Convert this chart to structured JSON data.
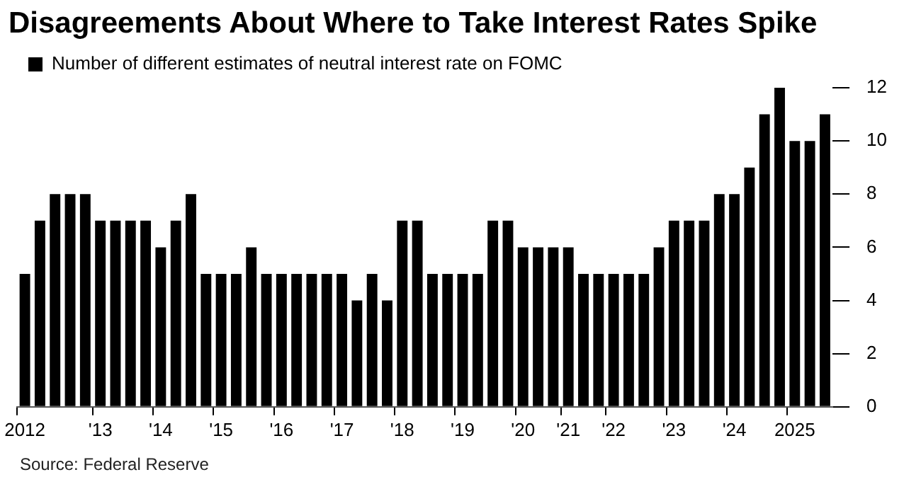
{
  "chart_data": {
    "type": "bar",
    "title": "Disagreements About Where to Take Interest Rates Spike",
    "categories": [
      "2012",
      null,
      null,
      null,
      null,
      "'13",
      null,
      null,
      null,
      "'14",
      null,
      null,
      null,
      "'15",
      null,
      null,
      null,
      "'16",
      null,
      null,
      null,
      "'17",
      null,
      null,
      null,
      "'18",
      null,
      null,
      null,
      "'19",
      null,
      null,
      null,
      "'20",
      null,
      null,
      "'21",
      null,
      null,
      "'22",
      null,
      null,
      null,
      "'23",
      null,
      null,
      null,
      "'24",
      null,
      null,
      null,
      "2025",
      null,
      null
    ],
    "series": [
      {
        "name": "Number of different estimates of neutral interest rate on FOMC",
        "color": "#000000",
        "values": [
          5,
          7,
          8,
          8,
          8,
          7,
          7,
          7,
          7,
          6,
          7,
          8,
          5,
          5,
          5,
          6,
          5,
          5,
          5,
          5,
          5,
          5,
          4,
          5,
          4,
          7,
          7,
          5,
          5,
          5,
          5,
          7,
          7,
          6,
          6,
          6,
          6,
          5,
          5,
          5,
          5,
          5,
          6,
          7,
          7,
          7,
          8,
          8,
          9,
          11,
          12,
          10,
          10,
          11
        ]
      }
    ],
    "ylim": [
      0,
      12
    ],
    "yticks": [
      0,
      2,
      4,
      6,
      8,
      10,
      12
    ],
    "grid": false,
    "legend": "top left",
    "annotations": [
      "Source: Federal Reserve"
    ]
  }
}
